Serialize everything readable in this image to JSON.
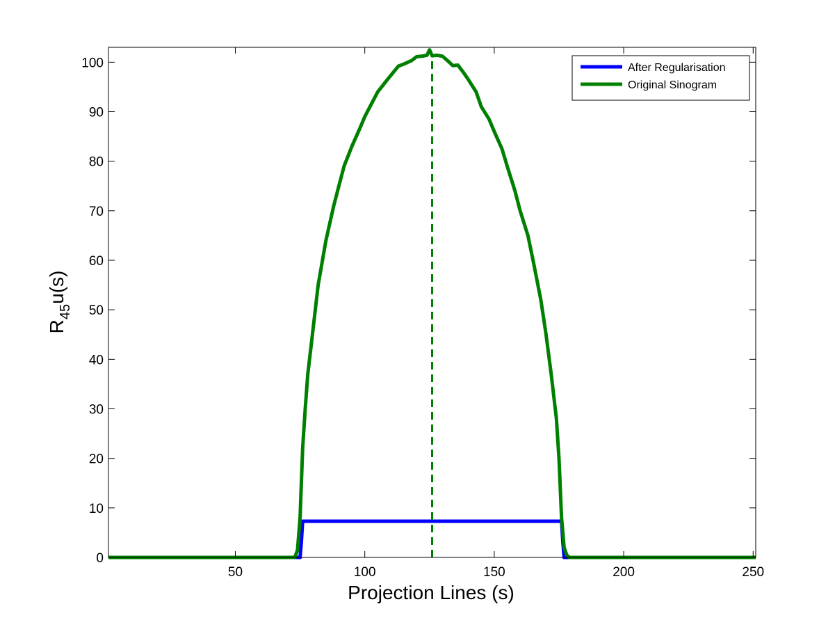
{
  "colors": {
    "background": "#ffffff",
    "axes": "#000000",
    "after_regularisation": "#0000ff",
    "original_sinogram": "#008000"
  },
  "chart_data": {
    "type": "line",
    "title": "",
    "xlabel": "Projection Lines (s)",
    "ylabel": {
      "main": "R",
      "subscript": "45",
      "suffix": "u(s)"
    },
    "xlim": [
      1,
      251
    ],
    "ylim": [
      0,
      103
    ],
    "xticks": [
      50,
      100,
      150,
      200,
      250
    ],
    "yticks": [
      0,
      10,
      20,
      30,
      40,
      50,
      60,
      70,
      80,
      90,
      100
    ],
    "grid": false,
    "legend_position": "top-right",
    "series": [
      {
        "name": "After Regularisation",
        "color": "#0000ff",
        "style": "solid",
        "x": [
          1,
          75,
          75.5,
          76,
          176,
          176.5,
          177,
          251
        ],
        "y": [
          0,
          0,
          3,
          7.3,
          7.3,
          3,
          0,
          0
        ]
      },
      {
        "name": "Original Sinogram",
        "color": "#008000",
        "style": "solid",
        "x": [
          1,
          73,
          74,
          75,
          76,
          77,
          78,
          80,
          82,
          85,
          88,
          90,
          92,
          95,
          98,
          100,
          103,
          105,
          108,
          110,
          113,
          115,
          118,
          120,
          122,
          124,
          125,
          126,
          128,
          130,
          132,
          134,
          136,
          138,
          140,
          143,
          145,
          148,
          150,
          153,
          155,
          158,
          160,
          163,
          165,
          168,
          170,
          172,
          174,
          175,
          176,
          177,
          178,
          179,
          251
        ],
        "y": [
          0,
          0,
          1.5,
          8,
          22,
          30,
          37,
          46,
          55,
          64,
          71,
          75,
          79,
          83,
          86.5,
          89,
          92,
          94,
          96,
          97.3,
          99.2,
          99.6,
          100.3,
          101.1,
          101.2,
          101.4,
          102.5,
          101.3,
          101.4,
          101.2,
          100.3,
          99.3,
          99.4,
          98,
          96.5,
          94,
          91,
          88.5,
          86,
          82.5,
          79,
          74,
          70,
          65,
          60,
          52,
          45,
          37,
          28,
          20,
          8,
          2,
          0.5,
          0,
          0
        ]
      },
      {
        "name": "",
        "color": "#008000",
        "style": "dashed",
        "x": [
          126,
          126
        ],
        "y": [
          0,
          101.2
        ]
      }
    ]
  }
}
